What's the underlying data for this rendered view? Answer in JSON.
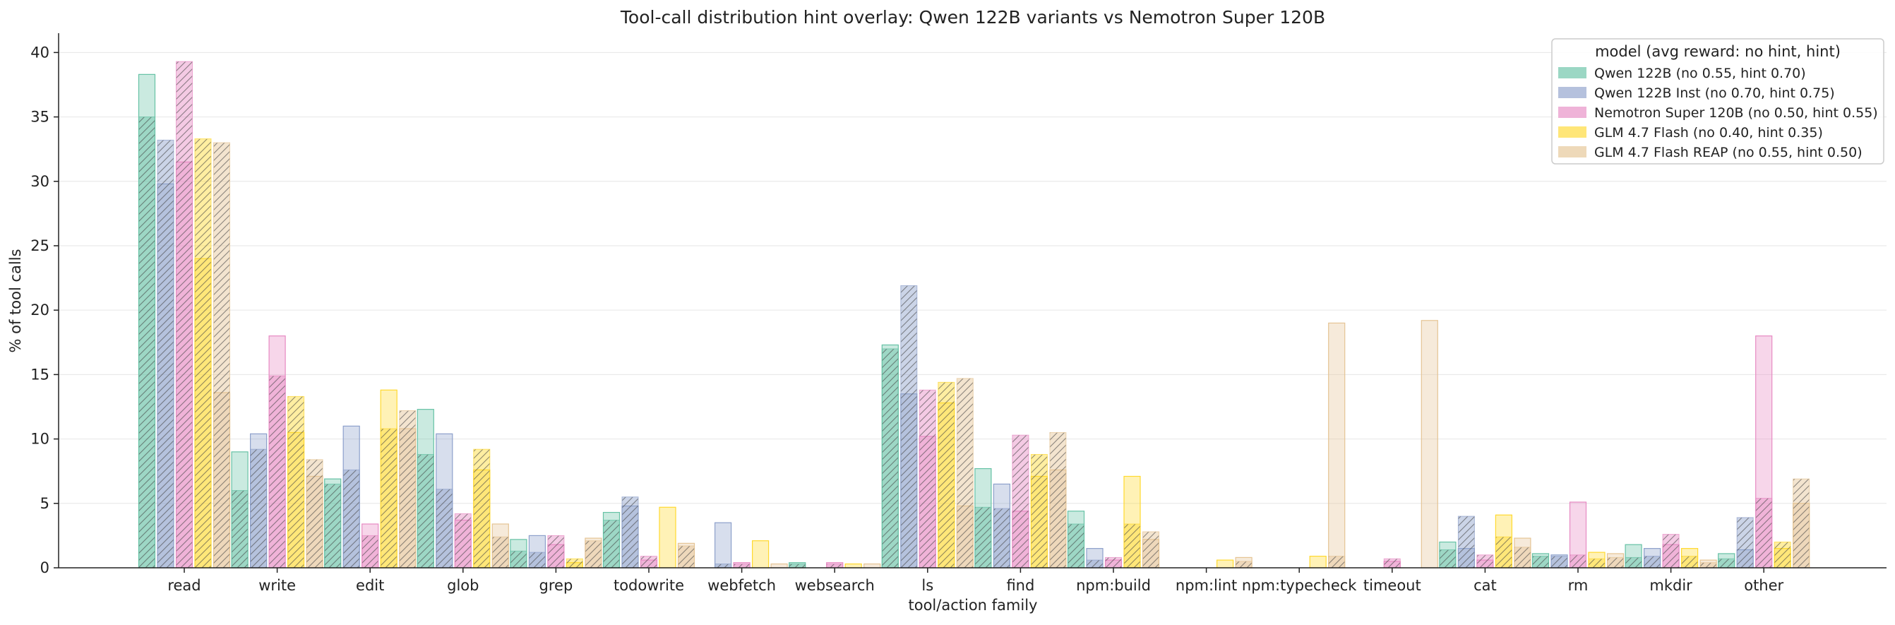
{
  "chart_data": {
    "type": "bar",
    "title": "Tool-call distribution hint overlay: Qwen 122B variants vs Nemotron Super 120B",
    "xlabel": "tool/action family",
    "ylabel": "% of tool calls",
    "ylim": [
      0,
      41.5
    ],
    "yticks": [
      0,
      5,
      10,
      15,
      20,
      25,
      30,
      35,
      40
    ],
    "grid": "y",
    "legend_position": "top-right",
    "legend_title": "model (avg reward: no hint, hint)",
    "bar_encoding": "solid = no hint, hatched = with hint",
    "categories": [
      "read",
      "write",
      "edit",
      "glob",
      "grep",
      "todowrite",
      "webfetch",
      "websearch",
      "ls",
      "find",
      "npm:build",
      "npm:lint",
      "npm:typecheck",
      "timeout",
      "cat",
      "rm",
      "mkdir",
      "other"
    ],
    "series": [
      {
        "name": "Qwen 122B (no 0.55, hint 0.70)",
        "color": "#66c2a5",
        "no_hint": [
          38.3,
          9.0,
          6.9,
          12.3,
          2.2,
          4.3,
          0.0,
          0.4,
          17.3,
          7.7,
          4.4,
          0.0,
          0.0,
          0.0,
          2.0,
          1.1,
          1.8,
          1.1
        ],
        "hint": [
          35.0,
          6.0,
          6.5,
          8.8,
          1.3,
          3.7,
          0.0,
          0.3,
          17.0,
          4.7,
          3.4,
          0.0,
          0.0,
          0.0,
          1.4,
          0.9,
          0.8,
          0.7
        ]
      },
      {
        "name": "Qwen 122B Inst (no 0.70, hint 0.75)",
        "color": "#8da0cb",
        "no_hint": [
          29.8,
          10.4,
          11.0,
          10.4,
          2.5,
          4.8,
          3.5,
          0.0,
          13.5,
          6.5,
          1.5,
          0.0,
          0.0,
          0.0,
          1.5,
          1.0,
          1.5,
          1.4
        ],
        "hint": [
          33.2,
          9.2,
          7.6,
          6.1,
          1.2,
          5.5,
          0.3,
          0.0,
          21.9,
          4.6,
          0.6,
          0.0,
          0.0,
          0.0,
          4.0,
          0.9,
          0.9,
          3.9
        ]
      },
      {
        "name": "Nemotron Super 120B (no 0.50, hint 0.55)",
        "color": "#e78ac3",
        "no_hint": [
          31.5,
          18.0,
          3.4,
          3.7,
          1.8,
          0.6,
          0.4,
          0.4,
          10.2,
          4.4,
          0.6,
          0.0,
          0.0,
          0.5,
          0.6,
          5.1,
          1.8,
          18.0
        ],
        "hint": [
          39.3,
          14.9,
          2.5,
          4.2,
          2.5,
          0.9,
          0.3,
          0.3,
          13.8,
          10.3,
          0.8,
          0.0,
          0.0,
          0.7,
          1.0,
          1.0,
          2.6,
          5.4
        ]
      },
      {
        "name": "GLM 4.7 Flash (no 0.40, hint 0.35)",
        "color": "#ffd92f",
        "no_hint": [
          24.0,
          10.5,
          13.8,
          7.6,
          0.4,
          4.7,
          2.1,
          0.3,
          12.8,
          7.1,
          7.1,
          0.6,
          0.9,
          0.0,
          4.1,
          1.2,
          1.5,
          1.5
        ],
        "hint": [
          33.3,
          13.3,
          10.8,
          9.2,
          0.7,
          0.0,
          0.0,
          0.0,
          14.4,
          8.8,
          3.4,
          0.0,
          0.0,
          0.0,
          2.4,
          0.7,
          0.9,
          2.0
        ]
      },
      {
        "name": "GLM 4.7 Flash REAP (no 0.55, hint 0.50)",
        "color": "#e5c494",
        "no_hint": [
          13.6,
          7.1,
          10.8,
          3.4,
          2.3,
          1.9,
          0.3,
          0.3,
          4.8,
          7.6,
          2.2,
          0.8,
          19.0,
          19.2,
          2.3,
          1.1,
          0.6,
          5.0
        ],
        "hint": [
          33.0,
          8.4,
          12.2,
          2.4,
          2.1,
          1.7,
          0.0,
          0.0,
          14.7,
          10.5,
          2.8,
          0.5,
          0.9,
          0.0,
          1.6,
          0.8,
          0.4,
          6.9
        ]
      }
    ]
  }
}
